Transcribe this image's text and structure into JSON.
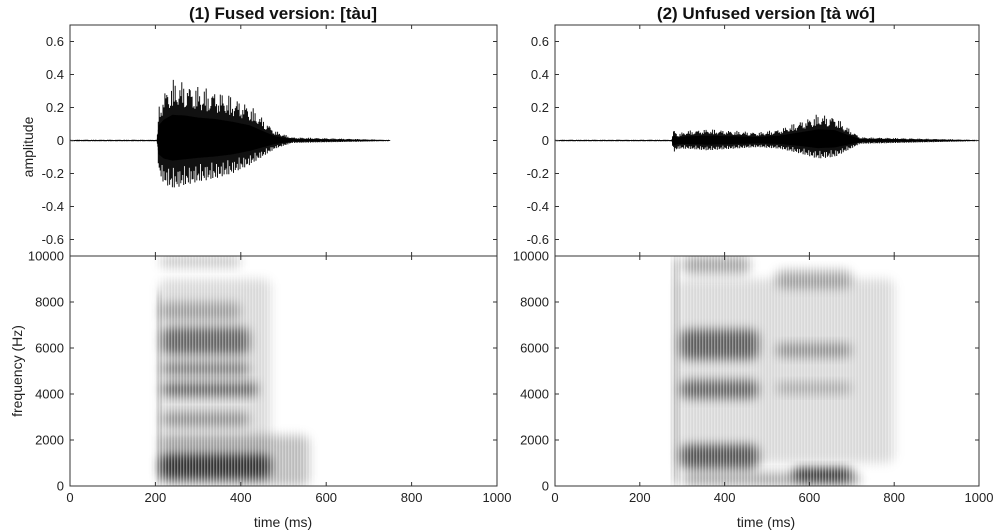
{
  "chart_data": [
    {
      "type": "waveform+spectrogram",
      "title": "(1) Fused version: [tàu]",
      "xlabel": "time (ms)",
      "xlim": [
        0,
        1000
      ],
      "xticks": [
        "0",
        "200",
        "400",
        "600",
        "800",
        "1000"
      ],
      "waveform": {
        "ylabel": "amplitude",
        "ylim": [
          -0.7,
          0.7
        ],
        "yticks": [
          "0.6",
          "0.4",
          "0.2",
          "0",
          "-0.2",
          "-0.4",
          "-0.6"
        ],
        "envelope": [
          {
            "t": 0,
            "max": 0.005,
            "min": -0.005
          },
          {
            "t": 204,
            "max": 0.005,
            "min": -0.005
          },
          {
            "t": 208,
            "max": 0.22,
            "min": -0.2
          },
          {
            "t": 220,
            "max": 0.3,
            "min": -0.26
          },
          {
            "t": 240,
            "max": 0.37,
            "min": -0.29
          },
          {
            "t": 270,
            "max": 0.36,
            "min": -0.27
          },
          {
            "t": 300,
            "max": 0.33,
            "min": -0.25
          },
          {
            "t": 340,
            "max": 0.31,
            "min": -0.23
          },
          {
            "t": 380,
            "max": 0.27,
            "min": -0.2
          },
          {
            "t": 420,
            "max": 0.22,
            "min": -0.15
          },
          {
            "t": 450,
            "max": 0.14,
            "min": -0.1
          },
          {
            "t": 480,
            "max": 0.06,
            "min": -0.05
          },
          {
            "t": 520,
            "max": 0.02,
            "min": -0.015
          },
          {
            "t": 750,
            "max": 0.004,
            "min": -0.004
          }
        ]
      },
      "spectrogram": {
        "ylabel": "frequency (Hz)",
        "ylim": [
          0,
          10000
        ],
        "yticks": [
          "0",
          "2000",
          "4000",
          "6000",
          "8000",
          "10000"
        ],
        "blobs": [
          {
            "t0": 205,
            "t1": 212,
            "f0": 0,
            "f1": 8500,
            "intensity": 0.75
          },
          {
            "t0": 210,
            "t1": 470,
            "f0": 300,
            "f1": 1400,
            "intensity": 0.95
          },
          {
            "t0": 210,
            "t1": 560,
            "f0": 0,
            "f1": 2200,
            "intensity": 0.35
          },
          {
            "t0": 215,
            "t1": 420,
            "f0": 2600,
            "f1": 3200,
            "intensity": 0.45
          },
          {
            "t0": 215,
            "t1": 440,
            "f0": 3900,
            "f1": 4500,
            "intensity": 0.7
          },
          {
            "t0": 215,
            "t1": 420,
            "f0": 4800,
            "f1": 5400,
            "intensity": 0.55
          },
          {
            "t0": 215,
            "t1": 420,
            "f0": 5700,
            "f1": 6900,
            "intensity": 0.7
          },
          {
            "t0": 210,
            "t1": 400,
            "f0": 7200,
            "f1": 8000,
            "intensity": 0.35
          },
          {
            "t0": 210,
            "t1": 400,
            "f0": 9500,
            "f1": 10000,
            "intensity": 0.3
          },
          {
            "t0": 210,
            "t1": 470,
            "f0": 1600,
            "f1": 9000,
            "intensity": 0.2
          }
        ]
      }
    },
    {
      "type": "waveform+spectrogram",
      "title": "(2) Unfused version [tà wó]",
      "xlabel": "time (ms)",
      "xlim": [
        0,
        1000
      ],
      "xticks": [
        "0",
        "200",
        "400",
        "600",
        "800",
        "1000"
      ],
      "waveform": {
        "ylabel": "",
        "ylim": [
          -0.7,
          0.7
        ],
        "yticks": [
          "0.6",
          "0.4",
          "0.2",
          "0",
          "-0.2",
          "-0.4",
          "-0.6"
        ],
        "envelope": [
          {
            "t": 0,
            "max": 0.005,
            "min": -0.005
          },
          {
            "t": 275,
            "max": 0.005,
            "min": -0.005
          },
          {
            "t": 280,
            "max": 0.07,
            "min": -0.07
          },
          {
            "t": 290,
            "max": 0.04,
            "min": -0.05
          },
          {
            "t": 310,
            "max": 0.06,
            "min": -0.05
          },
          {
            "t": 360,
            "max": 0.07,
            "min": -0.06
          },
          {
            "t": 420,
            "max": 0.06,
            "min": -0.05
          },
          {
            "t": 480,
            "max": 0.05,
            "min": -0.04
          },
          {
            "t": 530,
            "max": 0.07,
            "min": -0.05
          },
          {
            "t": 580,
            "max": 0.12,
            "min": -0.08
          },
          {
            "t": 620,
            "max": 0.16,
            "min": -0.11
          },
          {
            "t": 660,
            "max": 0.15,
            "min": -0.1
          },
          {
            "t": 690,
            "max": 0.08,
            "min": -0.06
          },
          {
            "t": 720,
            "max": 0.02,
            "min": -0.02
          },
          {
            "t": 1000,
            "max": 0.004,
            "min": -0.004
          }
        ]
      },
      "spectrogram": {
        "ylabel": "",
        "ylim": [
          0,
          10000
        ],
        "yticks": [
          "0",
          "2000",
          "4000",
          "6000",
          "8000",
          "10000"
        ],
        "blobs": [
          {
            "t0": 276,
            "t1": 282,
            "f0": 0,
            "f1": 10000,
            "intensity": 0.7
          },
          {
            "t0": 285,
            "t1": 292,
            "f0": 0,
            "f1": 10000,
            "intensity": 0.85
          },
          {
            "t0": 295,
            "t1": 480,
            "f0": 700,
            "f1": 1800,
            "intensity": 0.8
          },
          {
            "t0": 300,
            "t1": 720,
            "f0": 0,
            "f1": 600,
            "intensity": 0.45
          },
          {
            "t0": 560,
            "t1": 700,
            "f0": 200,
            "f1": 800,
            "intensity": 0.95
          },
          {
            "t0": 295,
            "t1": 480,
            "f0": 3800,
            "f1": 4600,
            "intensity": 0.7
          },
          {
            "t0": 295,
            "t1": 480,
            "f0": 5500,
            "f1": 6800,
            "intensity": 0.75
          },
          {
            "t0": 520,
            "t1": 700,
            "f0": 5600,
            "f1": 6200,
            "intensity": 0.45
          },
          {
            "t0": 520,
            "t1": 700,
            "f0": 4000,
            "f1": 4500,
            "intensity": 0.3
          },
          {
            "t0": 300,
            "t1": 460,
            "f0": 9200,
            "f1": 10000,
            "intensity": 0.45
          },
          {
            "t0": 520,
            "t1": 700,
            "f0": 8600,
            "f1": 9400,
            "intensity": 0.4
          },
          {
            "t0": 290,
            "t1": 800,
            "f0": 1000,
            "f1": 9000,
            "intensity": 0.2
          }
        ]
      }
    }
  ]
}
